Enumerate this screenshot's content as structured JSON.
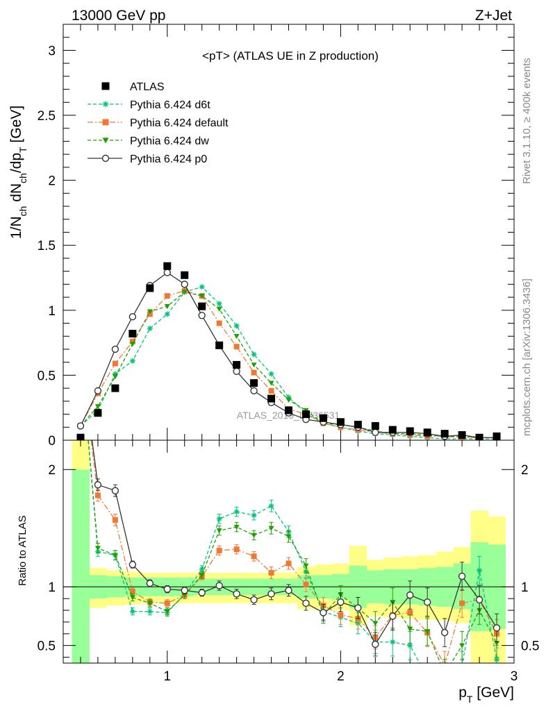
{
  "header": {
    "left": "13000 GeV pp",
    "right": "Z+Jet"
  },
  "side_text": {
    "rivet": "Rivet 3.1.10, ≥ 400k events",
    "mcplots": "mcplots.cern.ch [arXiv:1306.3436]"
  },
  "chart_data": [
    {
      "type": "line",
      "panel": "main",
      "title": "<pT> (ATLAS UE in Z production)",
      "watermark": "ATLAS_2019_I1736531",
      "ylabel": "1/N_ch dN_ch/dp_T [GeV]",
      "xlim": [
        0.4,
        3.0
      ],
      "ylim": [
        0,
        3.2
      ],
      "y_ticks": [
        "0",
        "0.5",
        "1",
        "1.5",
        "2",
        "2.5",
        "3"
      ],
      "legend_position": "top-left",
      "x": [
        0.5,
        0.6,
        0.7,
        0.8,
        0.9,
        1.0,
        1.1,
        1.2,
        1.3,
        1.4,
        1.5,
        1.6,
        1.7,
        1.8,
        1.9,
        2.0,
        2.1,
        2.2,
        2.3,
        2.4,
        2.5,
        2.6,
        2.7,
        2.8,
        2.9
      ],
      "series": [
        {
          "name": "ATLAS",
          "color": "#000000",
          "marker": "square",
          "values": [
            0.02,
            0.21,
            0.4,
            0.82,
            1.17,
            1.34,
            1.27,
            1.03,
            0.73,
            0.58,
            0.44,
            0.32,
            0.23,
            0.2,
            0.17,
            0.14,
            0.12,
            0.11,
            0.08,
            0.07,
            0.06,
            0.05,
            0.04,
            0.02,
            0.03
          ]
        },
        {
          "name": "Pythia 6.424 d6t",
          "color": "#00c47a",
          "marker": "star",
          "values": [
            0.11,
            0.23,
            0.51,
            0.61,
            0.86,
            0.97,
            1.14,
            1.18,
            1.05,
            0.88,
            0.66,
            0.51,
            0.33,
            0.21,
            0.13,
            0.1,
            0.07,
            0.05,
            0.04,
            0.03,
            0.02,
            0.01,
            0.01,
            0.01,
            0.01
          ]
        },
        {
          "name": "Pythia 6.424 default",
          "color": "#f07832",
          "marker": "square",
          "values": [
            0.11,
            0.36,
            0.59,
            0.76,
            0.97,
            1.11,
            1.15,
            1.11,
            0.9,
            0.72,
            0.52,
            0.38,
            0.24,
            0.2,
            0.13,
            0.1,
            0.08,
            0.06,
            0.05,
            0.04,
            0.03,
            0.03,
            0.02,
            0.02,
            0.02
          ]
        },
        {
          "name": "Pythia 6.424 dw",
          "color": "#1fa000",
          "marker": "triangle-down",
          "values": [
            0.11,
            0.26,
            0.49,
            0.74,
            0.99,
            1.03,
            1.14,
            1.11,
            1.01,
            0.8,
            0.58,
            0.44,
            0.31,
            0.23,
            0.13,
            0.12,
            0.1,
            0.07,
            0.05,
            0.05,
            0.04,
            0.03,
            0.03,
            0.02,
            0.02
          ]
        },
        {
          "name": "Pythia 6.424 p0",
          "color": "#333333",
          "marker": "open-circle",
          "values": [
            0.11,
            0.38,
            0.7,
            0.95,
            1.19,
            1.29,
            1.2,
            0.96,
            0.73,
            0.53,
            0.38,
            0.29,
            0.21,
            0.16,
            0.14,
            0.12,
            0.1,
            0.06,
            0.06,
            0.06,
            0.05,
            0.03,
            0.04,
            0.02,
            0.02
          ]
        }
      ]
    },
    {
      "type": "line",
      "panel": "ratio",
      "ylabel": "Ratio to ATLAS",
      "xlabel": "p_T [GeV]",
      "xlim": [
        0.4,
        3.0
      ],
      "ylim": [
        0.35,
        2.25
      ],
      "x_ticks": [
        "1",
        "2",
        "3"
      ],
      "y_ticks": [
        "0.5",
        "1",
        "2"
      ],
      "reference_line": 1,
      "band_edges": [
        0.45,
        0.55,
        0.65,
        0.75,
        0.85,
        0.95,
        1.05,
        1.15,
        1.25,
        1.35,
        1.45,
        1.55,
        1.65,
        1.75,
        1.85,
        1.95,
        2.05,
        2.15,
        2.25,
        2.35,
        2.45,
        2.55,
        2.65,
        2.75,
        2.85,
        2.95
      ],
      "band_yellow": {
        "color": "#ffff88",
        "lower": [
          0.35,
          0.82,
          0.84,
          0.85,
          0.86,
          0.86,
          0.86,
          0.86,
          0.86,
          0.86,
          0.86,
          0.86,
          0.86,
          0.81,
          0.81,
          0.8,
          0.67,
          0.75,
          0.74,
          0.73,
          0.72,
          0.71,
          0.69,
          0.35,
          0.35
        ],
        "upper": [
          2.25,
          1.16,
          1.14,
          1.13,
          1.12,
          1.12,
          1.12,
          1.12,
          1.12,
          1.12,
          1.12,
          1.12,
          1.12,
          1.17,
          1.19,
          1.2,
          1.35,
          1.23,
          1.25,
          1.26,
          1.27,
          1.3,
          1.34,
          1.65,
          1.6
        ]
      },
      "band_green": {
        "color": "#99ff99",
        "lower": [
          0.35,
          0.9,
          0.91,
          0.92,
          0.92,
          0.92,
          0.92,
          0.93,
          0.93,
          0.93,
          0.93,
          0.93,
          0.93,
          0.9,
          0.9,
          0.89,
          0.82,
          0.86,
          0.85,
          0.85,
          0.84,
          0.83,
          0.81,
          0.62,
          0.64
        ],
        "upper": [
          2.0,
          1.1,
          1.09,
          1.08,
          1.08,
          1.08,
          1.08,
          1.07,
          1.07,
          1.07,
          1.07,
          1.07,
          1.07,
          1.1,
          1.1,
          1.11,
          1.18,
          1.14,
          1.15,
          1.15,
          1.16,
          1.17,
          1.2,
          1.38,
          1.36
        ]
      },
      "x": [
        0.5,
        0.6,
        0.7,
        0.8,
        0.9,
        1.0,
        1.1,
        1.2,
        1.3,
        1.4,
        1.5,
        1.6,
        1.7,
        1.8,
        1.9,
        2.0,
        2.1,
        2.2,
        2.3,
        2.4,
        2.5,
        2.6,
        2.7,
        2.8,
        2.9
      ],
      "series": [
        {
          "name": "Pythia 6.424 d6t",
          "color": "#00c47a",
          "marker": "star",
          "values": [
            3.0,
            1.3,
            1.27,
            0.79,
            0.79,
            0.78,
            0.94,
            1.15,
            1.58,
            1.64,
            1.61,
            1.69,
            1.47,
            1.13,
            0.79,
            0.74,
            0.69,
            0.53,
            0.53,
            0.5,
            0.23,
            0.16,
            0.33,
            1.14,
            0.38
          ],
          "errors": [
            0.0,
            0.04,
            0.04,
            0.03,
            0.03,
            0.03,
            0.03,
            0.03,
            0.04,
            0.04,
            0.04,
            0.05,
            0.05,
            0.06,
            0.07,
            0.08,
            0.09,
            0.1,
            0.12,
            0.12,
            0.12,
            0.12,
            0.12,
            0.12,
            0.12
          ]
        },
        {
          "name": "Pythia 6.424 default",
          "color": "#f07832",
          "marker": "square",
          "values": [
            3.0,
            1.78,
            1.57,
            0.96,
            0.87,
            0.86,
            0.93,
            1.09,
            1.31,
            1.32,
            1.26,
            1.12,
            1.2,
            1.02,
            0.84,
            0.76,
            0.73,
            0.57,
            0.76,
            0.78,
            0.61,
            0.33,
            0.86,
            0.89,
            0.6
          ],
          "errors": [
            0.0,
            0.05,
            0.05,
            0.03,
            0.03,
            0.03,
            0.03,
            0.03,
            0.04,
            0.04,
            0.04,
            0.05,
            0.05,
            0.06,
            0.07,
            0.08,
            0.09,
            0.1,
            0.12,
            0.12,
            0.12,
            0.12,
            0.12,
            0.12,
            0.12
          ]
        },
        {
          "name": "Pythia 6.424 dw",
          "color": "#1fa000",
          "marker": "triangle-down",
          "values": [
            3.0,
            1.33,
            1.27,
            0.91,
            0.86,
            0.79,
            0.93,
            1.1,
            1.48,
            1.51,
            1.44,
            1.5,
            1.43,
            1.18,
            0.76,
            0.93,
            0.82,
            0.69,
            0.87,
            0.64,
            0.62,
            0.26,
            0.5,
            0.8,
            0.52
          ],
          "errors": [
            0.0,
            0.04,
            0.04,
            0.03,
            0.03,
            0.03,
            0.03,
            0.03,
            0.04,
            0.04,
            0.04,
            0.05,
            0.05,
            0.06,
            0.07,
            0.08,
            0.09,
            0.1,
            0.12,
            0.12,
            0.12,
            0.12,
            0.12,
            0.12,
            0.12
          ]
        },
        {
          "name": "Pythia 6.424 p0",
          "color": "#333333",
          "marker": "open-circle",
          "values": [
            3.0,
            1.87,
            1.82,
            1.19,
            1.03,
            0.98,
            0.97,
            0.95,
            1.01,
            0.94,
            0.89,
            0.94,
            0.97,
            0.86,
            0.78,
            0.87,
            0.82,
            0.51,
            0.75,
            0.93,
            0.87,
            0.61,
            1.09,
            0.89,
            0.65
          ],
          "errors": [
            0.0,
            0.05,
            0.05,
            0.03,
            0.03,
            0.03,
            0.03,
            0.03,
            0.04,
            0.04,
            0.04,
            0.05,
            0.05,
            0.06,
            0.07,
            0.08,
            0.09,
            0.1,
            0.12,
            0.12,
            0.12,
            0.12,
            0.12,
            0.12,
            0.12
          ]
        }
      ]
    }
  ]
}
